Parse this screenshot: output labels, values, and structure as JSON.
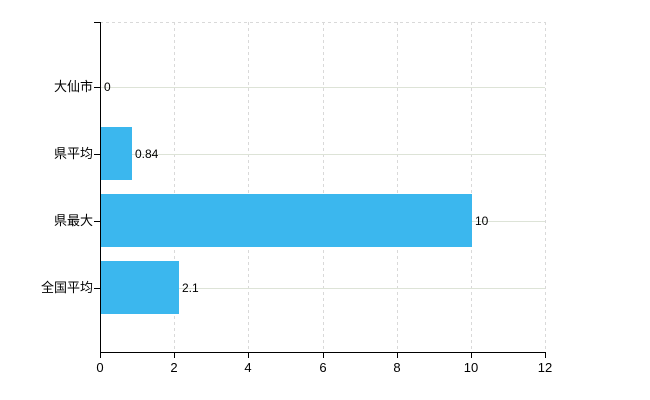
{
  "chart_data": {
    "type": "bar",
    "orientation": "horizontal",
    "title": "",
    "xlabel": "",
    "ylabel": "",
    "categories": [
      "大仙市",
      "県平均",
      "県最大",
      "全国平均"
    ],
    "values": [
      0,
      0.84,
      10,
      2.1
    ],
    "value_labels": [
      "0",
      "0.84",
      "10",
      "2.1"
    ],
    "xlim": [
      0,
      12
    ],
    "x_ticks": [
      0,
      2,
      4,
      6,
      8,
      10,
      12
    ],
    "x_tick_labels": [
      "0",
      "2",
      "4",
      "6",
      "8",
      "10",
      "12"
    ],
    "grid": true,
    "legend": false,
    "colors": {
      "bar": "#3bb7ee",
      "axis": "#000000",
      "text": "#000000",
      "vgrid": "#d9d9d9",
      "category_gridline": "#dde3d7",
      "background": "#ffffff"
    }
  }
}
